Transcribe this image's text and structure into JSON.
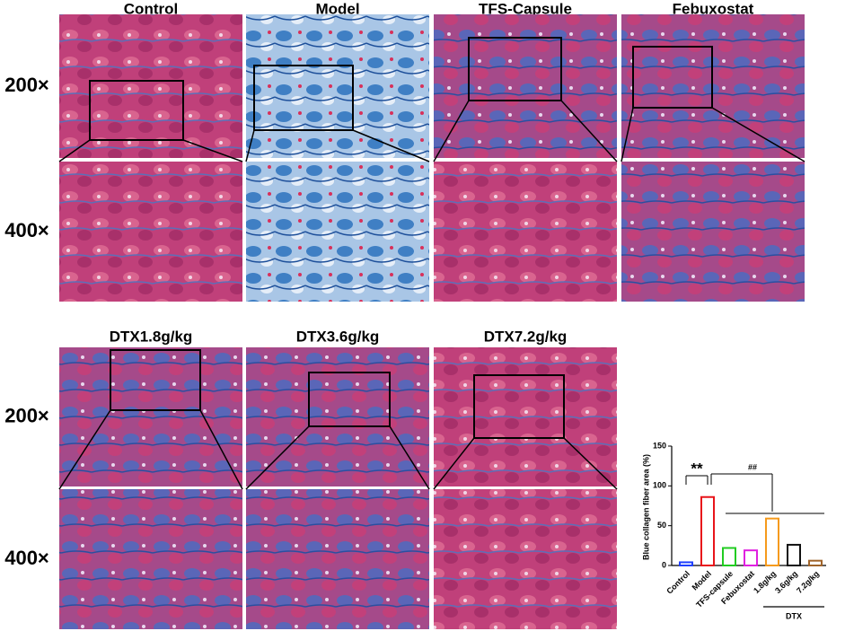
{
  "panels": {
    "titles": [
      "Control",
      "Model",
      "TFS-Capsule",
      "Febuxostat",
      "DTX1.8g/kg",
      "DTX3.6g/kg",
      "DTX7.2g/kg"
    ],
    "magnifications": [
      "200×",
      "400×"
    ]
  },
  "chart_data": {
    "type": "bar",
    "y_label": "Blue collagen fiber area (%)",
    "categories": [
      "Control",
      "Model",
      "TFS-capsule",
      "Febuxostat",
      "1.8g/kg",
      "3.6g/kg",
      "7.2g/kg"
    ],
    "values": [
      4,
      86,
      22,
      19,
      59,
      26,
      6
    ],
    "colors": [
      "#1f3fff",
      "#e8141a",
      "#22cc22",
      "#e020e0",
      "#f59a1c",
      "#111111",
      "#a0642a"
    ],
    "ylim": [
      0,
      150
    ],
    "yticks": [
      0,
      50,
      100,
      150
    ],
    "group_label": "DTX",
    "annotations": [
      "**",
      "##"
    ]
  }
}
